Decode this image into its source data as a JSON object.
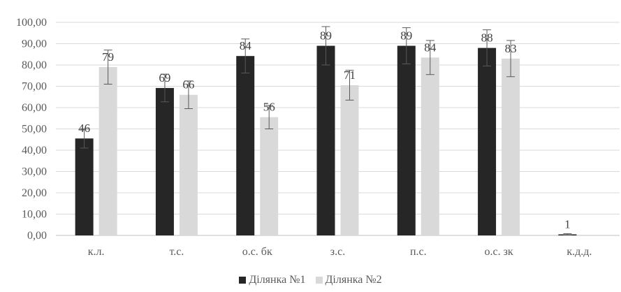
{
  "chart_data": {
    "type": "bar",
    "categories": [
      "к.л.",
      "т.с.",
      "о.с. бк",
      "з.с.",
      "п.с.",
      "о.с. зк",
      "к.д.д."
    ],
    "series": [
      {
        "name": "Ділянка №1",
        "color": "#262626",
        "values": [
          45.5,
          69.2,
          84.2,
          89.0,
          89.0,
          88.0,
          0.5
        ],
        "labels": [
          "46",
          "69",
          "84",
          "89",
          "89",
          "88",
          "1"
        ],
        "error": [
          4.5,
          6.5,
          8.0,
          9.0,
          8.5,
          8.5,
          0.3
        ]
      },
      {
        "name": "Ділянка №2",
        "color": "#d9d9d9",
        "values": [
          79.0,
          66.0,
          55.5,
          70.5,
          83.5,
          83.0,
          null
        ],
        "labels": [
          "79",
          "66",
          "56",
          "71",
          "84",
          "83",
          ""
        ],
        "error": [
          8.0,
          6.5,
          5.5,
          7.0,
          8.0,
          8.5,
          null
        ]
      }
    ],
    "yticks": [
      "0,00",
      "10,00",
      "20,00",
      "30,00",
      "40,00",
      "50,00",
      "60,00",
      "70,00",
      "80,00",
      "90,00",
      "100,00"
    ],
    "ylim": [
      0,
      100
    ],
    "grid": true,
    "legend_position": "bottom"
  }
}
